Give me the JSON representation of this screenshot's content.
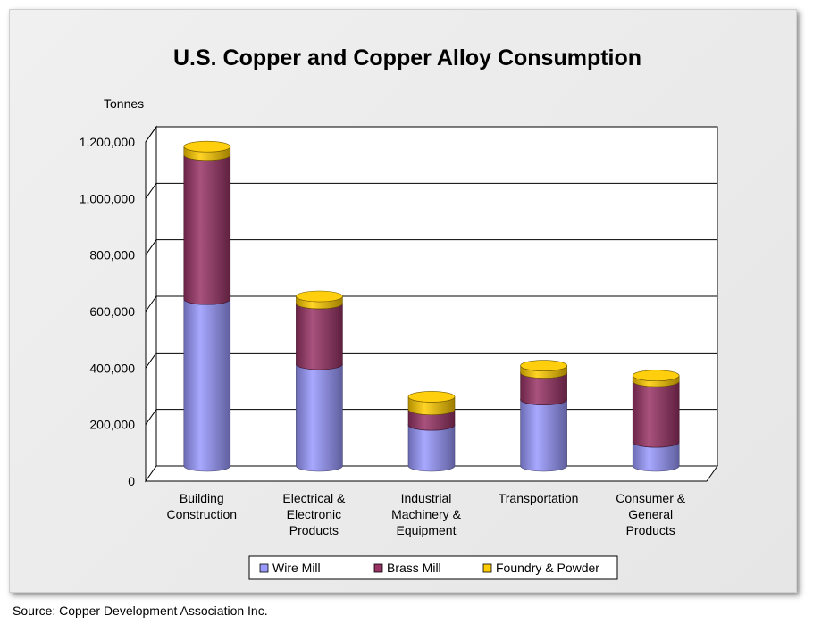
{
  "chart_data": {
    "type": "bar",
    "stacked": true,
    "style": "3d-cylinder",
    "title": "U.S. Copper and Copper Alloy Consumption",
    "ylabel": "Tonnes",
    "ylim": [
      0,
      1200000
    ],
    "yticks": [
      0,
      200000,
      400000,
      600000,
      800000,
      1000000,
      1200000
    ],
    "ytick_labels": [
      "0",
      "200,000",
      "400,000",
      "600,000",
      "800,000",
      "1,000,000",
      "1,200,000"
    ],
    "categories": [
      [
        "Building",
        "Construction"
      ],
      [
        "Electrical &",
        "Electronic",
        "Products"
      ],
      [
        "Industrial",
        "Machinery &",
        "Equipment"
      ],
      [
        "Transportation"
      ],
      [
        "Consumer &",
        "General",
        "Products"
      ]
    ],
    "series": [
      {
        "name": "Wire Mill",
        "color": "#9999ff",
        "values": [
          590000,
          360000,
          145000,
          235000,
          85000
        ]
      },
      {
        "name": "Brass Mill",
        "color": "#993366",
        "values": [
          510000,
          215000,
          55000,
          95000,
          215000
        ]
      },
      {
        "name": "Foundry & Powder",
        "color": "#ffcc00",
        "values": [
          30000,
          25000,
          45000,
          25000,
          20000
        ]
      }
    ],
    "grid": true,
    "legend": "bottom"
  },
  "source": "Source: Copper Development Association Inc."
}
